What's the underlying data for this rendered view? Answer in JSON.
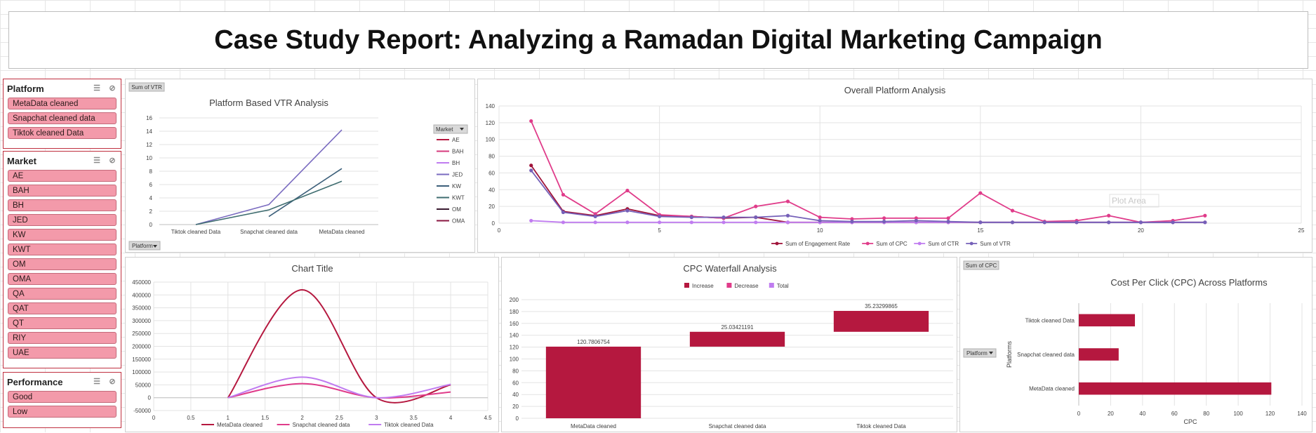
{
  "report_title": "Case Study Report: Analyzing a Ramadan Digital Marketing Campaign",
  "slicers": {
    "platform": {
      "title": "Platform",
      "items": [
        "MetaData cleaned",
        "Snapchat cleaned data",
        "Tiktok cleaned Data"
      ]
    },
    "market": {
      "title": "Market",
      "items": [
        "AE",
        "BAH",
        "BH",
        "JED",
        "KW",
        "KWT",
        "OM",
        "OMA",
        "QA",
        "QAT",
        "QT",
        "RIY",
        "UAE"
      ]
    },
    "performance": {
      "title": "Performance",
      "items": [
        "Good",
        "Low"
      ]
    }
  },
  "colors": {
    "crimson": "#b5183f",
    "pink": "#e03c8a",
    "lilac": "#c07cf0",
    "purple": "#7560b8",
    "slicer": "#f39aaa"
  },
  "chart_data": [
    {
      "id": "vtr",
      "type": "line",
      "title": "Platform Based VTR Analysis",
      "field_button": "Sum of VTR",
      "axis_button": "Platform",
      "legend_button": "Market",
      "categories": [
        "Tiktok cleaned Data",
        "Snapchat cleaned data",
        "MetaData cleaned"
      ],
      "ylim": [
        0,
        16
      ],
      "yticks": [
        0,
        2,
        4,
        6,
        8,
        10,
        12,
        14,
        16
      ],
      "series": [
        {
          "name": "AE",
          "color": "#b5183f",
          "values": [
            null,
            null,
            null
          ]
        },
        {
          "name": "BAH",
          "color": "#d63a7c",
          "values": [
            null,
            null,
            null
          ]
        },
        {
          "name": "BH",
          "color": "#c07cf0",
          "values": [
            null,
            null,
            null
          ]
        },
        {
          "name": "JED",
          "color": "#7a6bc0",
          "values": [
            0,
            3,
            14.2
          ]
        },
        {
          "name": "KW",
          "color": "#3c5f7a",
          "values": [
            null,
            1.2,
            8.4
          ]
        },
        {
          "name": "KWT",
          "color": "#3f6d70",
          "values": [
            0,
            2.2,
            6.5
          ]
        },
        {
          "name": "OM",
          "color": "#3a1a30",
          "values": [
            null,
            null,
            null
          ]
        },
        {
          "name": "OMA",
          "color": "#8a1640",
          "values": [
            null,
            null,
            null
          ]
        }
      ]
    },
    {
      "id": "overall",
      "type": "scatter",
      "title": "Overall Platform Analysis",
      "xlim": [
        0,
        25
      ],
      "xticks": [
        0,
        5,
        10,
        15,
        20,
        25
      ],
      "ylim": [
        0,
        140
      ],
      "yticks": [
        0,
        20,
        40,
        60,
        80,
        100,
        120,
        140
      ],
      "annotation": "Plot Area",
      "series": [
        {
          "name": "Sum of Engagement Rate",
          "color": "#a0143a",
          "x": [
            1,
            2,
            3,
            4,
            5,
            6,
            7,
            8,
            9,
            10,
            11,
            12,
            13,
            14,
            15,
            16,
            17,
            18,
            19,
            20,
            21,
            22
          ],
          "y": [
            69,
            14,
            9,
            17,
            9,
            8,
            6,
            7,
            1,
            1,
            1,
            1,
            1,
            1,
            1,
            1,
            1,
            1,
            1,
            1,
            1,
            1
          ]
        },
        {
          "name": "Sum of CPC",
          "color": "#e03c8a",
          "x": [
            1,
            2,
            3,
            4,
            5,
            6,
            7,
            8,
            9,
            10,
            11,
            12,
            13,
            14,
            15,
            16,
            17,
            18,
            19,
            20,
            21,
            22
          ],
          "y": [
            122,
            34,
            11,
            39,
            10,
            8,
            6,
            20,
            26,
            7,
            5,
            6,
            6,
            6,
            36,
            15,
            2,
            3,
            9,
            1,
            3,
            9
          ]
        },
        {
          "name": "Sum of CTR",
          "color": "#c07cf0",
          "x": [
            1,
            2,
            3,
            4,
            5,
            6,
            7,
            8,
            9,
            10,
            11,
            12,
            13,
            14,
            15,
            16,
            17,
            18,
            19,
            20,
            21,
            22
          ],
          "y": [
            3,
            1,
            1,
            1,
            1,
            1,
            1,
            1,
            1,
            1,
            1,
            1,
            1,
            1,
            1,
            1,
            1,
            1,
            1,
            1,
            1,
            1
          ]
        },
        {
          "name": "Sum of VTR",
          "color": "#7560b8",
          "x": [
            1,
            2,
            3,
            4,
            5,
            6,
            7,
            8,
            9,
            10,
            11,
            12,
            13,
            14,
            15,
            16,
            17,
            18,
            19,
            20,
            21,
            22
          ],
          "y": [
            63,
            13,
            8,
            15,
            8,
            7,
            7,
            7,
            9,
            3,
            2,
            2,
            3,
            2,
            1,
            1,
            1,
            1,
            1,
            1,
            1,
            1
          ]
        }
      ]
    },
    {
      "id": "smooth",
      "type": "scatter",
      "title": "Chart Title",
      "xlim": [
        0,
        4.5
      ],
      "xticks": [
        0,
        0.5,
        1,
        1.5,
        2,
        2.5,
        3,
        3.5,
        4,
        4.5
      ],
      "ylim": [
        -50000,
        450000
      ],
      "yticks": [
        -50000,
        0,
        50000,
        100000,
        150000,
        200000,
        250000,
        300000,
        350000,
        400000,
        450000
      ],
      "series": [
        {
          "name": "MetaData cleaned",
          "color": "#b5183f",
          "x": [
            1,
            2,
            3,
            4
          ],
          "y": [
            0,
            420000,
            0,
            50000
          ]
        },
        {
          "name": "Snapchat cleaned data",
          "color": "#e03c8a",
          "x": [
            1,
            2,
            3,
            4
          ],
          "y": [
            0,
            55000,
            0,
            22000
          ]
        },
        {
          "name": "Tiktok cleaned Data",
          "color": "#c07cf0",
          "x": [
            1,
            2,
            3,
            4
          ],
          "y": [
            0,
            80000,
            0,
            52000
          ]
        }
      ]
    },
    {
      "id": "waterfall",
      "type": "bar",
      "title": "CPC Waterfall Analysis",
      "legend": [
        {
          "name": "Increase",
          "color": "#b5183f"
        },
        {
          "name": "Decrease",
          "color": "#e03c8a"
        },
        {
          "name": "Total",
          "color": "#c07cf0"
        }
      ],
      "categories": [
        "MetaData cleaned",
        "Snapchat cleaned data",
        "Tiktok cleaned Data"
      ],
      "values": [
        120.7806754,
        25.03421191,
        35.23299865
      ],
      "value_labels": [
        "120.7806754",
        "25.03421191",
        "35.23299865"
      ],
      "ylim": [
        0,
        200
      ],
      "yticks": [
        0,
        20,
        40,
        60,
        80,
        100,
        120,
        140,
        160,
        180,
        200
      ]
    },
    {
      "id": "cpc",
      "type": "bar",
      "orientation": "horizontal",
      "title": "Cost Per Click (CPC) Across Platforms",
      "field_button": "Sum of CPC",
      "axis_button": "Platform",
      "categories": [
        "Tiktok cleaned Data",
        "Snapchat cleaned data",
        "MetaData cleaned"
      ],
      "values": [
        35.23,
        25.03,
        120.78
      ],
      "xlabel": "CPC",
      "ylabel": "Platforms",
      "xlim": [
        0,
        140
      ],
      "xticks": [
        0,
        20,
        40,
        60,
        80,
        100,
        120,
        140
      ]
    }
  ]
}
